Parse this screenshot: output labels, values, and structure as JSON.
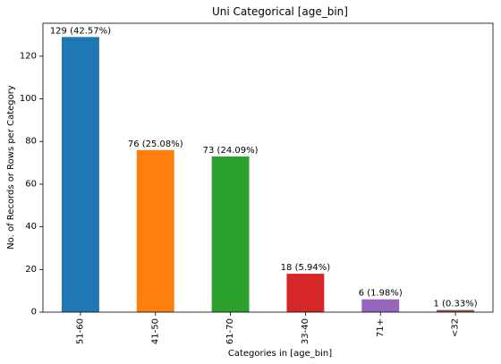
{
  "chart_data": {
    "type": "bar",
    "title": "Uni Categorical [age_bin]",
    "xlabel": "Categories in [age_bin]",
    "ylabel": "No. of Records or Rows per Category",
    "categories": [
      "51-60",
      "41-50",
      "61-70",
      "33-40",
      "71+",
      "<32"
    ],
    "values": [
      129,
      76,
      73,
      18,
      6,
      1
    ],
    "labels": [
      "129 (42.57%)",
      "76 (25.08%)",
      "73 (24.09%)",
      "18 (5.94%)",
      "6 (1.98%)",
      "1 (0.33%)"
    ],
    "colors": [
      "#1f77b4",
      "#ff7f0e",
      "#2ca02c",
      "#d62728",
      "#9467bd",
      "#8c564b"
    ],
    "ylim": [
      0,
      135.45
    ],
    "yticks": [
      0,
      20,
      40,
      60,
      80,
      100,
      120
    ],
    "grid": false,
    "legend": "none"
  }
}
